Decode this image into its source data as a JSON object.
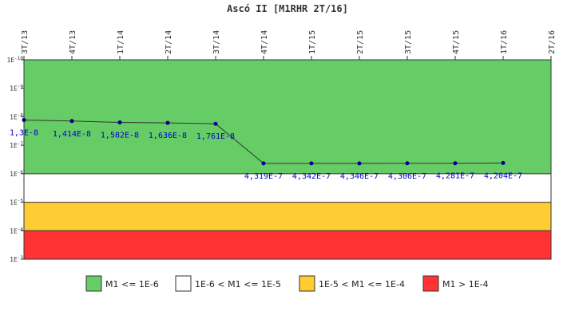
{
  "chart_data": {
    "type": "line",
    "title": "Ascó II [M1RHR 2T/16]",
    "y_scale": "log",
    "y_reversed": true,
    "ylim": [
      1e-10,
      0.001
    ],
    "y_ticks": [
      {
        "value": 1e-10,
        "label": "1E-10"
      },
      {
        "value": 1e-09,
        "label": "1E-9"
      },
      {
        "value": 1e-08,
        "label": "1E-8"
      },
      {
        "value": 1e-07,
        "label": "1E-7"
      },
      {
        "value": 1e-06,
        "label": "1E-6"
      },
      {
        "value": 1e-05,
        "label": "1E-5"
      },
      {
        "value": 0.0001,
        "label": "1E-4"
      },
      {
        "value": 0.001,
        "label": "1E-3"
      }
    ],
    "categories": [
      "3T/13",
      "4T/13",
      "1T/14",
      "2T/14",
      "3T/14",
      "4T/14",
      "1T/15",
      "2T/15",
      "3T/15",
      "4T/15",
      "1T/16",
      "2T/16"
    ],
    "series": [
      {
        "values": [
          1.3e-08,
          1.414e-08,
          1.582e-08,
          1.636e-08,
          1.761e-08,
          4.319e-07,
          4.342e-07,
          4.346e-07,
          4.306e-07,
          4.281e-07,
          4.204e-07,
          null
        ],
        "labels": [
          "1,3E-8",
          "1,414E-8",
          "1,582E-8",
          "1,636E-8",
          "1,761E-8",
          "4,319E-7",
          "4,342E-7",
          "4,346E-7",
          "4,306E-7",
          "4,281E-7",
          "4,204E-7",
          ""
        ],
        "color": "#000080"
      }
    ],
    "bands": [
      {
        "from": 1e-10,
        "to": 1e-06,
        "color": "#66cc66",
        "legend": "M1 <= 1E-6"
      },
      {
        "from": 1e-06,
        "to": 1e-05,
        "color": "#ffffff",
        "legend": "1E-6 < M1 <= 1E-5"
      },
      {
        "from": 1e-05,
        "to": 0.0001,
        "color": "#ffcc33",
        "legend": "1E-5 < M1 <= 1E-4"
      },
      {
        "from": 0.0001,
        "to": 0.001,
        "color": "#ff3333",
        "legend": "M1 > 1E-4"
      }
    ],
    "legend_position": "bottom",
    "grid": false
  }
}
